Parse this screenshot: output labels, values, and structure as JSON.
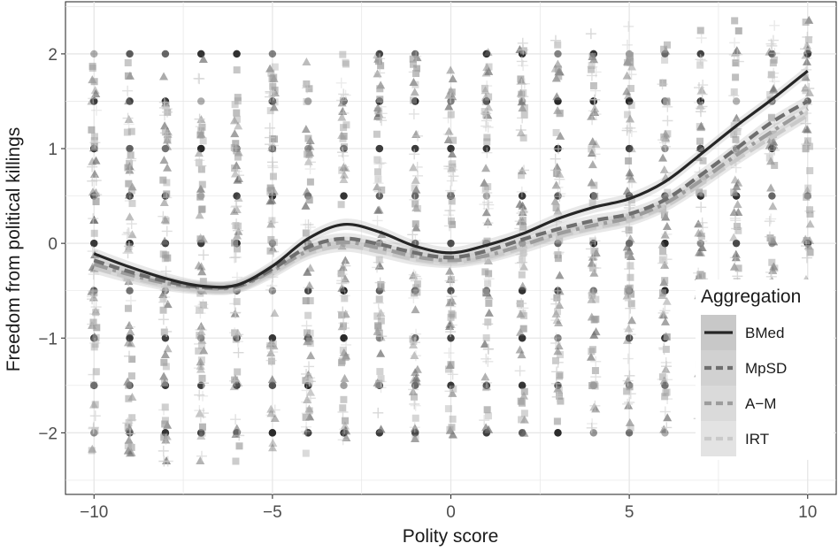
{
  "chart_data": {
    "type": "scatter",
    "xlabel": "Polity score",
    "ylabel": "Freedom from political killings",
    "xlim": [
      -10.8,
      10.8
    ],
    "ylim": [
      -2.65,
      2.55
    ],
    "x_ticks": [
      -10,
      -5,
      0,
      5,
      10
    ],
    "y_ticks": [
      -2,
      -1,
      0,
      1,
      2
    ],
    "x_tick_labels": [
      "−10",
      "−5",
      "0",
      "5",
      "10"
    ],
    "y_tick_labels": [
      "−2",
      "−1",
      "0",
      "1",
      "2"
    ],
    "grid": true,
    "legend": {
      "title": "Aggregation",
      "position": "right",
      "entries": [
        "BMed",
        "MpSD",
        "A−M",
        "IRT"
      ]
    },
    "x_values": [
      -10,
      -9,
      -8,
      -7,
      -6,
      -5,
      -4,
      -3,
      -2,
      -1,
      0,
      1,
      2,
      3,
      4,
      5,
      6,
      7,
      8,
      9,
      10
    ],
    "series": [
      {
        "name": "BMed",
        "color": "#262626",
        "marker": "circle",
        "line_style": "solid",
        "smooth": [
          -0.11,
          -0.25,
          -0.37,
          -0.45,
          -0.44,
          -0.24,
          0.05,
          0.2,
          0.12,
          -0.03,
          -0.1,
          -0.02,
          0.1,
          0.26,
          0.38,
          0.47,
          0.65,
          0.94,
          1.24,
          1.52,
          1.82
        ]
      },
      {
        "name": "MpSD",
        "color": "#6e6e6e",
        "marker": "triangle",
        "line_style": "dashed",
        "smooth": [
          -0.18,
          -0.3,
          -0.4,
          -0.46,
          -0.45,
          -0.27,
          -0.04,
          0.05,
          -0.01,
          -0.1,
          -0.15,
          -0.08,
          0.04,
          0.15,
          0.24,
          0.31,
          0.46,
          0.72,
          1.0,
          1.28,
          1.5
        ]
      },
      {
        "name": "A−M",
        "color": "#9c9c9c",
        "marker": "square",
        "line_style": "dashdot",
        "smooth": [
          -0.22,
          -0.33,
          -0.42,
          -0.47,
          -0.46,
          -0.29,
          -0.08,
          0.01,
          -0.05,
          -0.14,
          -0.18,
          -0.13,
          -0.02,
          0.1,
          0.19,
          0.27,
          0.42,
          0.66,
          0.93,
          1.18,
          1.42
        ]
      },
      {
        "name": "IRT",
        "color": "#c9c9c9",
        "marker": "plus",
        "line_style": "longdash",
        "smooth": [
          -0.26,
          -0.36,
          -0.44,
          -0.48,
          -0.47,
          -0.31,
          -0.11,
          -0.03,
          -0.09,
          -0.17,
          -0.2,
          -0.15,
          -0.05,
          0.07,
          0.16,
          0.24,
          0.39,
          0.62,
          0.88,
          1.12,
          1.35
        ]
      }
    ]
  }
}
